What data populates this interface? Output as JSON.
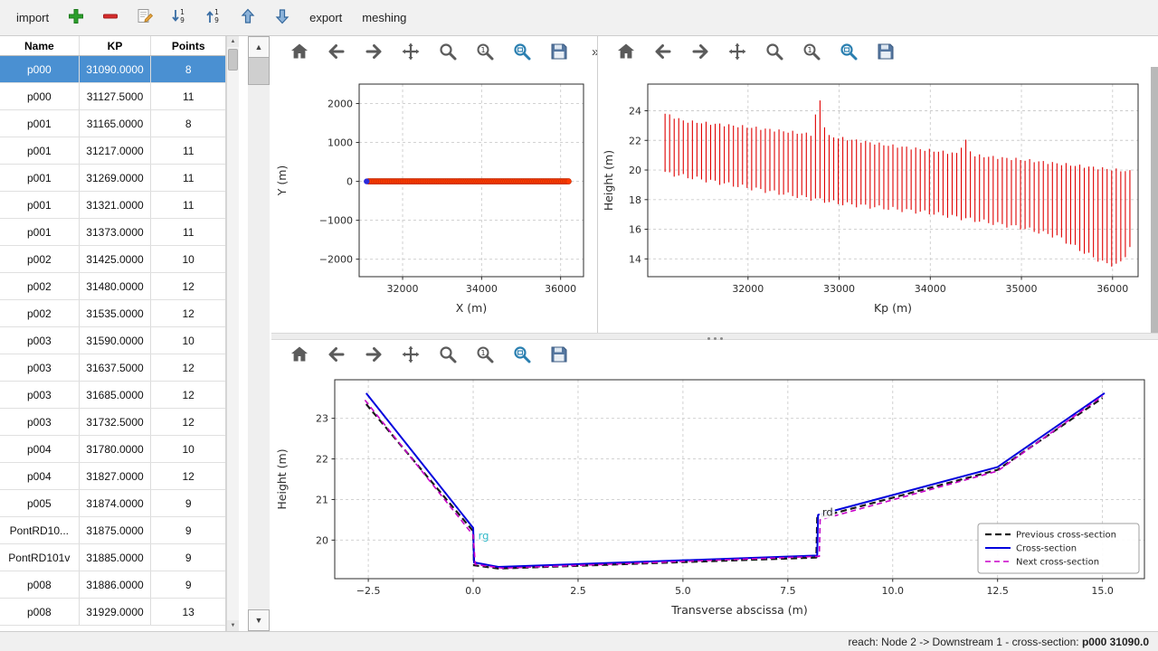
{
  "top_toolbar": {
    "import_label": "import",
    "export_label": "export",
    "meshing_label": "meshing",
    "icon_buttons": [
      "add-icon",
      "remove-icon",
      "edit-icon",
      "sort-1-9-icon",
      "sort-9-1-icon",
      "move-up-icon",
      "move-down-icon"
    ]
  },
  "icons": {
    "overflow-chevron": "»",
    "scroll-up-arrow": "▲",
    "scroll-down-arrow": "▼"
  },
  "mpl_toolbar": {
    "buttons": [
      "home-icon",
      "back-icon",
      "forward-icon",
      "pan-icon",
      "zoom-icon",
      "zoom-original-icon",
      "zoom-rect-icon",
      "save-icon"
    ]
  },
  "table": {
    "columns": [
      "Name",
      "KP",
      "Points"
    ],
    "selected_row": 0,
    "rows": [
      [
        "p000",
        "31090.0000",
        "8"
      ],
      [
        "p000",
        "31127.5000",
        "11"
      ],
      [
        "p001",
        "31165.0000",
        "8"
      ],
      [
        "p001",
        "31217.0000",
        "11"
      ],
      [
        "p001",
        "31269.0000",
        "11"
      ],
      [
        "p001",
        "31321.0000",
        "11"
      ],
      [
        "p001",
        "31373.0000",
        "11"
      ],
      [
        "p002",
        "31425.0000",
        "10"
      ],
      [
        "p002",
        "31480.0000",
        "12"
      ],
      [
        "p002",
        "31535.0000",
        "12"
      ],
      [
        "p003",
        "31590.0000",
        "10"
      ],
      [
        "p003",
        "31637.5000",
        "12"
      ],
      [
        "p003",
        "31685.0000",
        "12"
      ],
      [
        "p003",
        "31732.5000",
        "12"
      ],
      [
        "p004",
        "31780.0000",
        "10"
      ],
      [
        "p004",
        "31827.0000",
        "12"
      ],
      [
        "p005",
        "31874.0000",
        "9"
      ],
      [
        "PontRD10...",
        "31875.0000",
        "9"
      ],
      [
        "PontRD101v",
        "31885.0000",
        "9"
      ],
      [
        "p008",
        "31886.0000",
        "9"
      ],
      [
        "p008",
        "31929.0000",
        "13"
      ]
    ]
  },
  "status_bar": {
    "prefix": "reach: Node 2 -> Downstream 1 - cross-section: ",
    "highlight": "p000 31090.0"
  },
  "colors": {
    "selection": "#4a90d2",
    "profile_red": "#e00000",
    "section_blue": "#0000dd",
    "section_magenta": "#c800c8",
    "section_black": "#1a1a1a"
  },
  "chart_data": [
    {
      "id": "plan",
      "type": "scatter",
      "xlabel": "X (m)",
      "ylabel": "Y (m)",
      "xlim": [
        30900,
        36580
      ],
      "ylim": [
        -2450,
        2500
      ],
      "xticks": [
        32000,
        34000,
        36000
      ],
      "xtick_labels": [
        "32000",
        "34000",
        "36000"
      ],
      "yticks": [
        2000,
        1000,
        0,
        -1000,
        -2000
      ],
      "ytick_labels": [
        "2000",
        "1000",
        "0",
        "−1000",
        "−2000"
      ],
      "grid": true,
      "series": [
        {
          "kind": "scatter-gen",
          "name": "cross-section-positions",
          "color": "#ff3b00",
          "edge": "#c22900",
          "x_start": 31135,
          "x_end": 36200,
          "count": 112,
          "y": 0,
          "r": 3.1
        },
        {
          "kind": "scatter",
          "name": "selected-cross-section",
          "color": "#2b2bdb",
          "r": 3.2,
          "points": [
            [
              31090,
              0
            ]
          ]
        }
      ]
    },
    {
      "id": "profile",
      "type": "vlines",
      "xlabel": "Kp (m)",
      "ylabel": "Height (m)",
      "xlim": [
        30900,
        36280
      ],
      "ylim": [
        12.8,
        25.8
      ],
      "xticks": [
        32000,
        33000,
        34000,
        35000,
        36000
      ],
      "xtick_labels": [
        "32000",
        "33000",
        "34000",
        "35000",
        "36000"
      ],
      "yticks": [
        14,
        16,
        18,
        20,
        22,
        24
      ],
      "ytick_labels": [
        "14",
        "16",
        "18",
        "20",
        "22",
        "24"
      ],
      "grid": true,
      "vlines": {
        "name": "cross-section-elevation-ranges",
        "color": "#e00000",
        "kp_start": 31090,
        "kp_end": 36200,
        "spacing": 50,
        "top_envelope": [
          [
            31090,
            23.8
          ],
          [
            31300,
            23.3
          ],
          [
            32000,
            22.9
          ],
          [
            32700,
            22.4
          ],
          [
            32780,
            25.0
          ],
          [
            32860,
            22.3
          ],
          [
            33500,
            21.7
          ],
          [
            34300,
            21.1
          ],
          [
            34380,
            22.1
          ],
          [
            34460,
            21.0
          ],
          [
            35000,
            20.7
          ],
          [
            35600,
            20.3
          ],
          [
            36200,
            19.9
          ]
        ],
        "bottom_envelope": [
          [
            31090,
            19.8
          ],
          [
            32000,
            18.8
          ],
          [
            33000,
            17.75
          ],
          [
            34000,
            17.1
          ],
          [
            35000,
            16.1
          ],
          [
            35400,
            15.5
          ],
          [
            35700,
            14.4
          ],
          [
            35950,
            13.6
          ],
          [
            36100,
            13.7
          ],
          [
            36200,
            15.0
          ]
        ]
      }
    },
    {
      "id": "section",
      "type": "line",
      "xlabel": "Transverse abscissa (m)",
      "ylabel": "Height (m)",
      "xlim": [
        -3.3,
        16.0
      ],
      "ylim": [
        19.05,
        23.95
      ],
      "xticks": [
        -2.5,
        0,
        2.5,
        5,
        7.5,
        10,
        12.5,
        15
      ],
      "xtick_labels": [
        "−2.5",
        "0.0",
        "2.5",
        "5.0",
        "7.5",
        "10.0",
        "12.5",
        "15.0"
      ],
      "yticks": [
        20,
        21,
        22,
        23
      ],
      "ytick_labels": [
        "20",
        "21",
        "22",
        "23"
      ],
      "grid": true,
      "series": [
        {
          "kind": "line",
          "name": "Previous cross-section",
          "color": "#1a1a1a",
          "dash": "7 4",
          "width": 2.2,
          "points": [
            [
              -2.55,
              23.35
            ],
            [
              0.0,
              20.22
            ],
            [
              0.02,
              19.38
            ],
            [
              0.6,
              19.3
            ],
            [
              8.18,
              19.57
            ],
            [
              8.2,
              20.55
            ],
            [
              12.5,
              21.73
            ],
            [
              15.0,
              23.5
            ]
          ]
        },
        {
          "kind": "line",
          "name": "Cross-section",
          "color": "#0000dd",
          "dash": null,
          "width": 2.0,
          "points": [
            [
              -2.55,
              23.62
            ],
            [
              0.0,
              20.3
            ],
            [
              0.02,
              19.45
            ],
            [
              0.6,
              19.34
            ],
            [
              8.2,
              19.62
            ],
            [
              8.22,
              20.62
            ],
            [
              12.5,
              21.8
            ],
            [
              15.05,
              23.62
            ]
          ]
        },
        {
          "kind": "line",
          "name": "Next cross-section",
          "color": "#c800c8",
          "dash": "6 4",
          "width": 1.6,
          "points": [
            [
              -2.58,
              23.45
            ],
            [
              0.0,
              20.12
            ],
            [
              0.05,
              19.4
            ],
            [
              0.7,
              19.31
            ],
            [
              8.25,
              19.6
            ],
            [
              8.27,
              20.5
            ],
            [
              12.5,
              21.7
            ],
            [
              15.0,
              23.55
            ]
          ]
        }
      ],
      "annotations": [
        {
          "text": "rg",
          "x": 0.12,
          "y": 20.02,
          "color": "#2eb8c8"
        },
        {
          "text": "rd",
          "x": 8.32,
          "y": 20.6,
          "color": "#2a2a2a",
          "bg": "#ffffff"
        }
      ],
      "legend": {
        "position": "lower right"
      }
    }
  ]
}
